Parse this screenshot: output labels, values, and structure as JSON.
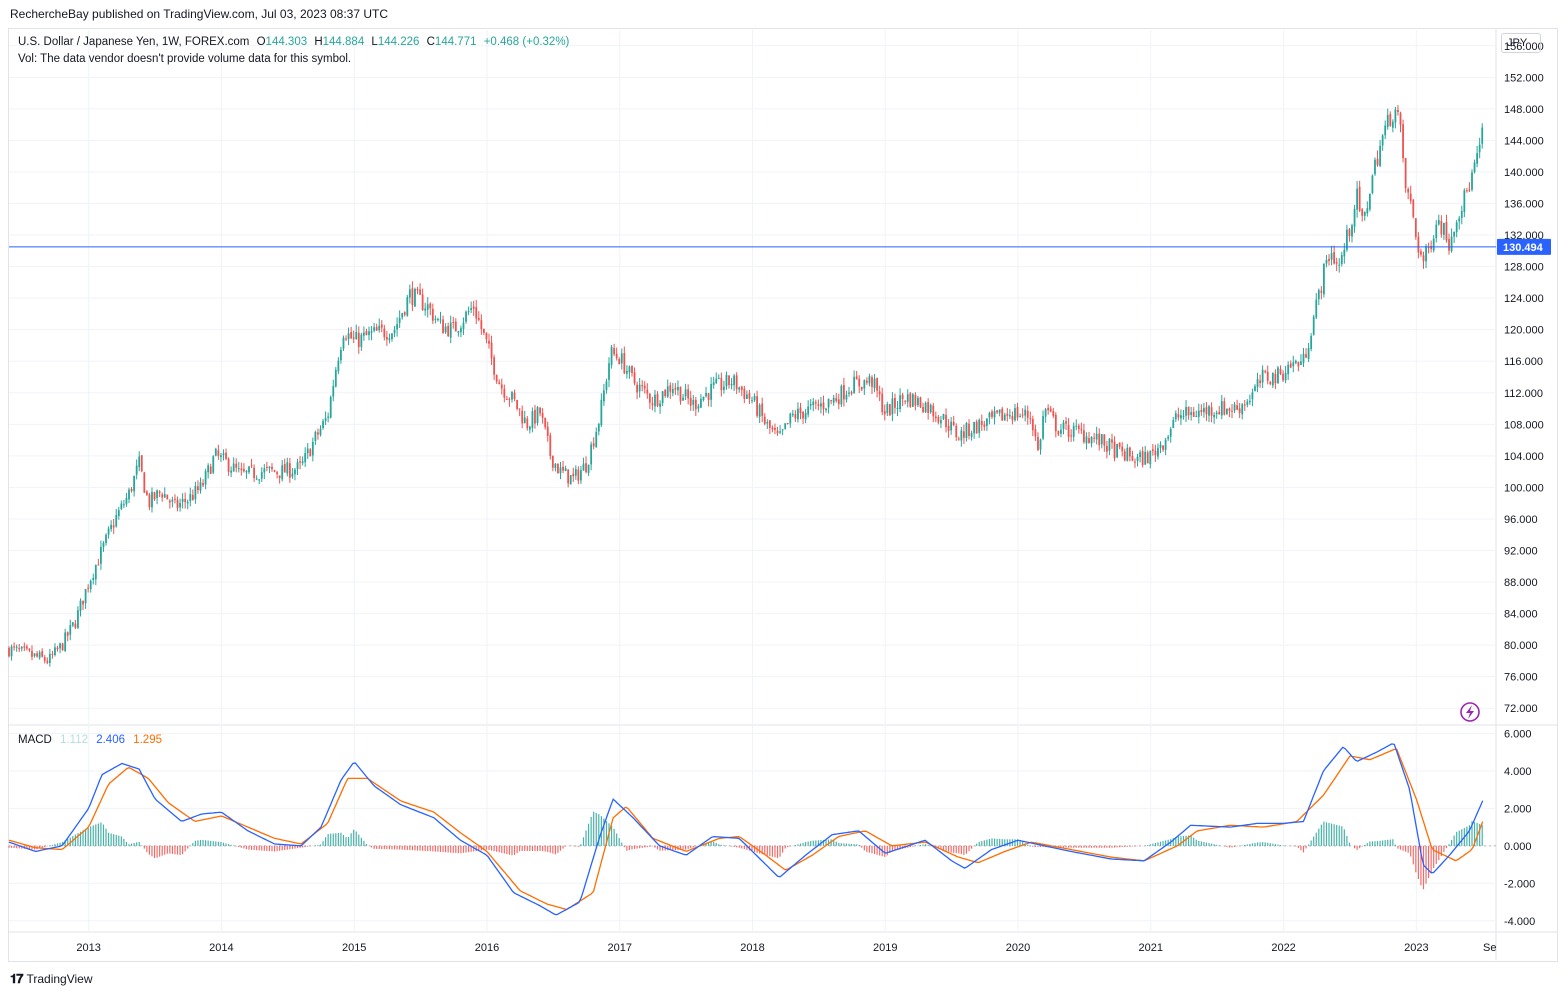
{
  "header": {
    "publisher": "RechercheBay published on TradingView.com, Jul 03, 2023 08:37 UTC"
  },
  "legend": {
    "symbol": "U.S. Dollar / Japanese Yen, 1W, FOREX.com",
    "open_label": "O",
    "open": "144.303",
    "high_label": "H",
    "high": "144.884",
    "low_label": "L",
    "low": "144.226",
    "close_label": "C",
    "close": "144.771",
    "change": "+0.468 (+0.32%)",
    "volume_note": "Vol: The data vendor doesn't provide volume data for this symbol."
  },
  "currency": "JPY",
  "macd": {
    "label": "MACD",
    "histogram": "1.112",
    "macd_line": "2.406",
    "signal": "1.295"
  },
  "footer": {
    "brand": "TradingView"
  },
  "colors": {
    "up": "#26a69a",
    "down": "#ef5350",
    "hline": "#2962ff",
    "macd": "#2962ff",
    "signal": "#ff6d00",
    "hist_up": "#26a69a",
    "hist_down": "#ef5350",
    "grid": "#f0f3fa",
    "axis_text": "#131722"
  },
  "chart_data": [
    {
      "type": "candlestick",
      "title": "U.S. Dollar / Japanese Yen, 1W, FOREX.com",
      "y_unit": "JPY",
      "ylim": [
        70,
        158
      ],
      "y_ticks": [
        "72.000",
        "76.000",
        "80.000",
        "84.000",
        "88.000",
        "92.000",
        "96.000",
        "100.000",
        "104.000",
        "108.000",
        "112.000",
        "116.000",
        "120.000",
        "124.000",
        "128.000",
        "132.000",
        "136.000",
        "140.000",
        "144.000",
        "148.000",
        "152.000",
        "156.000"
      ],
      "x_ticks": [
        "2013",
        "2014",
        "2015",
        "2016",
        "2017",
        "2018",
        "2019",
        "2020",
        "2021",
        "2022",
        "2023",
        "Se"
      ],
      "x_range": [
        2012.4,
        2023.6
      ],
      "horizontal_line": {
        "value": 130.494,
        "label": "130.494"
      },
      "price_path": [
        [
          2012.4,
          79.5
        ],
        [
          2012.5,
          79.0
        ],
        [
          2012.6,
          78.5
        ],
        [
          2012.7,
          78.0
        ],
        [
          2012.8,
          80.0
        ],
        [
          2012.9,
          83.0
        ],
        [
          2013.0,
          88.0
        ],
        [
          2013.1,
          92.0
        ],
        [
          2013.2,
          96.0
        ],
        [
          2013.3,
          99.0
        ],
        [
          2013.38,
          103.0
        ],
        [
          2013.45,
          98.0
        ],
        [
          2013.55,
          99.5
        ],
        [
          2013.65,
          97.5
        ],
        [
          2013.75,
          98.5
        ],
        [
          2013.85,
          100.0
        ],
        [
          2013.95,
          104.0
        ],
        [
          2014.05,
          103.0
        ],
        [
          2014.15,
          101.5
        ],
        [
          2014.3,
          102.0
        ],
        [
          2014.45,
          102.0
        ],
        [
          2014.6,
          102.5
        ],
        [
          2014.7,
          106.0
        ],
        [
          2014.8,
          109.0
        ],
        [
          2014.87,
          116.0
        ],
        [
          2014.92,
          120.0
        ],
        [
          2015.0,
          118.5
        ],
        [
          2015.15,
          119.5
        ],
        [
          2015.3,
          120.0
        ],
        [
          2015.42,
          124.5
        ],
        [
          2015.55,
          123.0
        ],
        [
          2015.65,
          120.5
        ],
        [
          2015.75,
          120.0
        ],
        [
          2015.9,
          123.0
        ],
        [
          2016.0,
          118.0
        ],
        [
          2016.1,
          113.0
        ],
        [
          2016.2,
          111.0
        ],
        [
          2016.3,
          108.0
        ],
        [
          2016.4,
          109.5
        ],
        [
          2016.48,
          104.0
        ],
        [
          2016.55,
          102.0
        ],
        [
          2016.65,
          101.0
        ],
        [
          2016.75,
          103.0
        ],
        [
          2016.85,
          109.0
        ],
        [
          2016.93,
          117.0
        ],
        [
          2017.0,
          116.5
        ],
        [
          2017.1,
          113.5
        ],
        [
          2017.25,
          111.0
        ],
        [
          2017.4,
          113.0
        ],
        [
          2017.55,
          110.5
        ],
        [
          2017.7,
          112.5
        ],
        [
          2017.85,
          113.5
        ],
        [
          2018.0,
          111.0
        ],
        [
          2018.1,
          108.0
        ],
        [
          2018.2,
          106.0
        ],
        [
          2018.3,
          109.0
        ],
        [
          2018.45,
          110.0
        ],
        [
          2018.6,
          111.0
        ],
        [
          2018.75,
          113.0
        ],
        [
          2018.9,
          113.5
        ],
        [
          2019.0,
          109.5
        ],
        [
          2019.15,
          111.5
        ],
        [
          2019.3,
          110.5
        ],
        [
          2019.45,
          108.5
        ],
        [
          2019.55,
          106.5
        ],
        [
          2019.65,
          107.5
        ],
        [
          2019.8,
          108.5
        ],
        [
          2019.95,
          109.5
        ],
        [
          2020.1,
          109.0
        ],
        [
          2020.15,
          104.5
        ],
        [
          2020.2,
          110.0
        ],
        [
          2020.3,
          107.5
        ],
        [
          2020.45,
          107.0
        ],
        [
          2020.6,
          106.0
        ],
        [
          2020.75,
          104.5
        ],
        [
          2020.9,
          103.5
        ],
        [
          2021.0,
          104.0
        ],
        [
          2021.1,
          106.0
        ],
        [
          2021.2,
          109.0
        ],
        [
          2021.35,
          109.5
        ],
        [
          2021.5,
          110.0
        ],
        [
          2021.65,
          110.0
        ],
        [
          2021.75,
          111.5
        ],
        [
          2021.85,
          114.0
        ],
        [
          2021.95,
          114.0
        ],
        [
          2022.05,
          115.5
        ],
        [
          2022.15,
          116.0
        ],
        [
          2022.22,
          121.0
        ],
        [
          2022.3,
          127.0
        ],
        [
          2022.35,
          130.0
        ],
        [
          2022.42,
          128.0
        ],
        [
          2022.5,
          133.0
        ],
        [
          2022.55,
          137.0
        ],
        [
          2022.6,
          133.0
        ],
        [
          2022.65,
          138.0
        ],
        [
          2022.72,
          143.0
        ],
        [
          2022.8,
          147.0
        ],
        [
          2022.85,
          148.0
        ],
        [
          2022.88,
          145.0
        ],
        [
          2022.92,
          138.0
        ],
        [
          2022.97,
          135.0
        ],
        [
          2023.0,
          131.5
        ],
        [
          2023.05,
          128.5
        ],
        [
          2023.1,
          130.5
        ],
        [
          2023.15,
          134.0
        ],
        [
          2023.2,
          133.0
        ],
        [
          2023.25,
          131.0
        ],
        [
          2023.3,
          134.5
        ],
        [
          2023.35,
          136.0
        ],
        [
          2023.4,
          138.5
        ],
        [
          2023.45,
          141.0
        ],
        [
          2023.5,
          144.771
        ]
      ]
    },
    {
      "type": "line",
      "title": "MACD",
      "ylim": [
        -4.6,
        6.4
      ],
      "y_ticks": [
        "-4.000",
        "-2.000",
        "0.000",
        "2.000",
        "4.000",
        "6.000"
      ],
      "series": [
        {
          "name": "MACD",
          "values": [
            [
              2012.4,
              0.2
            ],
            [
              2012.6,
              -0.3
            ],
            [
              2012.8,
              0.0
            ],
            [
              2013.0,
              2.0
            ],
            [
              2013.1,
              3.8
            ],
            [
              2013.25,
              4.4
            ],
            [
              2013.38,
              4.1
            ],
            [
              2013.5,
              2.5
            ],
            [
              2013.7,
              1.3
            ],
            [
              2013.85,
              1.7
            ],
            [
              2014.0,
              1.8
            ],
            [
              2014.2,
              0.8
            ],
            [
              2014.4,
              0.1
            ],
            [
              2014.6,
              0.0
            ],
            [
              2014.75,
              1.0
            ],
            [
              2014.9,
              3.5
            ],
            [
              2015.0,
              4.5
            ],
            [
              2015.15,
              3.2
            ],
            [
              2015.35,
              2.2
            ],
            [
              2015.6,
              1.5
            ],
            [
              2015.8,
              0.3
            ],
            [
              2016.0,
              -0.5
            ],
            [
              2016.2,
              -2.5
            ],
            [
              2016.4,
              -3.2
            ],
            [
              2016.52,
              -3.7
            ],
            [
              2016.7,
              -3.0
            ],
            [
              2016.85,
              0.5
            ],
            [
              2016.95,
              2.5
            ],
            [
              2017.1,
              1.5
            ],
            [
              2017.3,
              0.0
            ],
            [
              2017.5,
              -0.5
            ],
            [
              2017.7,
              0.5
            ],
            [
              2017.9,
              0.4
            ],
            [
              2018.1,
              -1.0
            ],
            [
              2018.2,
              -1.7
            ],
            [
              2018.4,
              -0.5
            ],
            [
              2018.6,
              0.6
            ],
            [
              2018.8,
              0.8
            ],
            [
              2019.0,
              -0.4
            ],
            [
              2019.3,
              0.3
            ],
            [
              2019.5,
              -0.8
            ],
            [
              2019.6,
              -1.2
            ],
            [
              2019.8,
              -0.2
            ],
            [
              2020.0,
              0.3
            ],
            [
              2020.2,
              0.0
            ],
            [
              2020.4,
              -0.3
            ],
            [
              2020.7,
              -0.7
            ],
            [
              2020.95,
              -0.8
            ],
            [
              2021.15,
              0.2
            ],
            [
              2021.3,
              1.1
            ],
            [
              2021.6,
              1.0
            ],
            [
              2021.8,
              1.2
            ],
            [
              2022.0,
              1.2
            ],
            [
              2022.15,
              1.3
            ],
            [
              2022.3,
              4.0
            ],
            [
              2022.45,
              5.3
            ],
            [
              2022.55,
              4.5
            ],
            [
              2022.7,
              5.0
            ],
            [
              2022.83,
              5.5
            ],
            [
              2022.95,
              3.0
            ],
            [
              2023.05,
              -1.0
            ],
            [
              2023.12,
              -1.5
            ],
            [
              2023.25,
              -0.5
            ],
            [
              2023.4,
              0.8
            ],
            [
              2023.5,
              2.406
            ]
          ]
        },
        {
          "name": "Signal",
          "values": [
            [
              2012.4,
              0.3
            ],
            [
              2012.6,
              -0.1
            ],
            [
              2012.8,
              -0.2
            ],
            [
              2013.0,
              1.0
            ],
            [
              2013.15,
              3.3
            ],
            [
              2013.3,
              4.2
            ],
            [
              2013.45,
              3.6
            ],
            [
              2013.6,
              2.3
            ],
            [
              2013.8,
              1.3
            ],
            [
              2014.0,
              1.6
            ],
            [
              2014.2,
              1.0
            ],
            [
              2014.4,
              0.4
            ],
            [
              2014.6,
              0.1
            ],
            [
              2014.8,
              1.2
            ],
            [
              2014.95,
              3.6
            ],
            [
              2015.1,
              3.6
            ],
            [
              2015.35,
              2.4
            ],
            [
              2015.6,
              1.8
            ],
            [
              2015.8,
              0.7
            ],
            [
              2016.0,
              -0.3
            ],
            [
              2016.25,
              -2.4
            ],
            [
              2016.45,
              -3.1
            ],
            [
              2016.6,
              -3.4
            ],
            [
              2016.8,
              -2.5
            ],
            [
              2016.95,
              1.5
            ],
            [
              2017.05,
              2.1
            ],
            [
              2017.25,
              0.4
            ],
            [
              2017.5,
              -0.3
            ],
            [
              2017.75,
              0.4
            ],
            [
              2017.9,
              0.5
            ],
            [
              2018.1,
              -0.5
            ],
            [
              2018.25,
              -1.3
            ],
            [
              2018.45,
              -0.5
            ],
            [
              2018.65,
              0.5
            ],
            [
              2018.85,
              0.8
            ],
            [
              2019.05,
              0.0
            ],
            [
              2019.3,
              0.2
            ],
            [
              2019.55,
              -0.6
            ],
            [
              2019.7,
              -0.9
            ],
            [
              2019.9,
              -0.3
            ],
            [
              2020.1,
              0.2
            ],
            [
              2020.4,
              -0.2
            ],
            [
              2020.7,
              -0.6
            ],
            [
              2020.95,
              -0.8
            ],
            [
              2021.2,
              0.0
            ],
            [
              2021.35,
              0.8
            ],
            [
              2021.6,
              1.1
            ],
            [
              2021.85,
              1.0
            ],
            [
              2022.1,
              1.3
            ],
            [
              2022.3,
              2.7
            ],
            [
              2022.5,
              4.8
            ],
            [
              2022.65,
              4.6
            ],
            [
              2022.85,
              5.2
            ],
            [
              2023.0,
              2.5
            ],
            [
              2023.12,
              -0.2
            ],
            [
              2023.3,
              -0.8
            ],
            [
              2023.42,
              -0.2
            ],
            [
              2023.5,
              1.295
            ]
          ]
        }
      ]
    }
  ]
}
